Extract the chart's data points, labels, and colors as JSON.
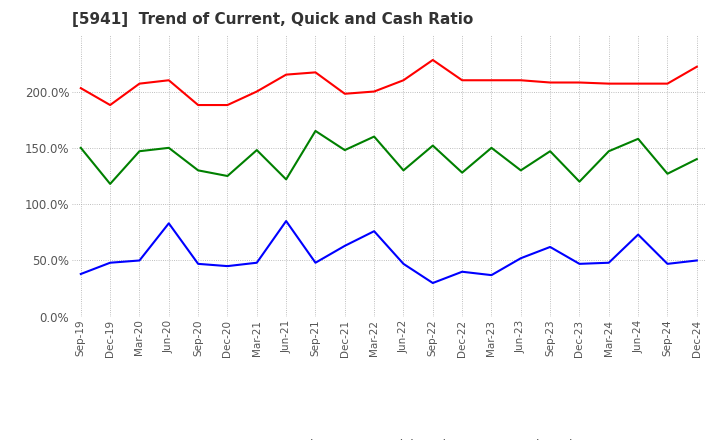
{
  "title": "[5941]  Trend of Current, Quick and Cash Ratio",
  "x_labels": [
    "Sep-19",
    "Dec-19",
    "Mar-20",
    "Jun-20",
    "Sep-20",
    "Dec-20",
    "Mar-21",
    "Jun-21",
    "Sep-21",
    "Dec-21",
    "Mar-22",
    "Jun-22",
    "Sep-22",
    "Dec-22",
    "Mar-23",
    "Jun-23",
    "Sep-23",
    "Dec-23",
    "Mar-24",
    "Jun-24",
    "Sep-24",
    "Dec-24"
  ],
  "current_ratio": [
    203,
    188,
    207,
    210,
    188,
    188,
    200,
    215,
    217,
    198,
    200,
    210,
    228,
    210,
    210,
    210,
    208,
    208,
    207,
    207,
    207,
    222
  ],
  "quick_ratio": [
    150,
    118,
    147,
    150,
    130,
    125,
    148,
    122,
    165,
    148,
    160,
    130,
    152,
    128,
    150,
    130,
    147,
    120,
    147,
    158,
    127,
    140
  ],
  "cash_ratio": [
    38,
    48,
    50,
    83,
    47,
    45,
    48,
    85,
    48,
    63,
    76,
    47,
    30,
    40,
    37,
    52,
    62,
    47,
    48,
    73,
    47,
    50
  ],
  "current_color": "#FF0000",
  "quick_color": "#008000",
  "cash_color": "#0000FF",
  "ylim": [
    0,
    250
  ],
  "yticks": [
    0,
    50,
    100,
    150,
    200
  ],
  "background_color": "#FFFFFF",
  "grid_color": "#AAAAAA",
  "title_fontsize": 11,
  "legend_labels": [
    "Current Ratio",
    "Quick Ratio",
    "Cash Ratio"
  ]
}
